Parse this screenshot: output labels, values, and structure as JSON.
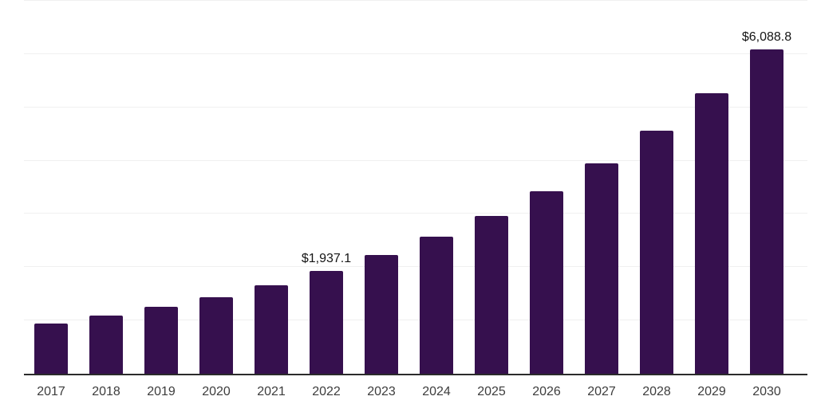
{
  "chart_data": {
    "type": "bar",
    "title": "",
    "categories": [
      "2017",
      "2018",
      "2019",
      "2020",
      "2021",
      "2022",
      "2023",
      "2024",
      "2025",
      "2026",
      "2027",
      "2028",
      "2029",
      "2030"
    ],
    "values": [
      940,
      1090,
      1255,
      1435,
      1660,
      1937.1,
      2235,
      2570,
      2965,
      3425,
      3950,
      4560,
      5265,
      6088.8
    ],
    "data_labels": [
      "",
      "",
      "",
      "",
      "",
      "$1,937.1",
      "",
      "",
      "",
      "",
      "",
      "",
      "",
      "$6,088.8"
    ],
    "xlabel": "",
    "ylabel": "",
    "ylim": [
      0,
      7000
    ],
    "gridline_step": 1000,
    "grid": "horizontal",
    "legend_position": "none",
    "bar_color": "#36104E",
    "gridline_color": "#f0f0f0",
    "axis_line_color": "#2b2b2b",
    "value_label_color": "#151515",
    "tick_label_color": "#3d3d3d"
  }
}
